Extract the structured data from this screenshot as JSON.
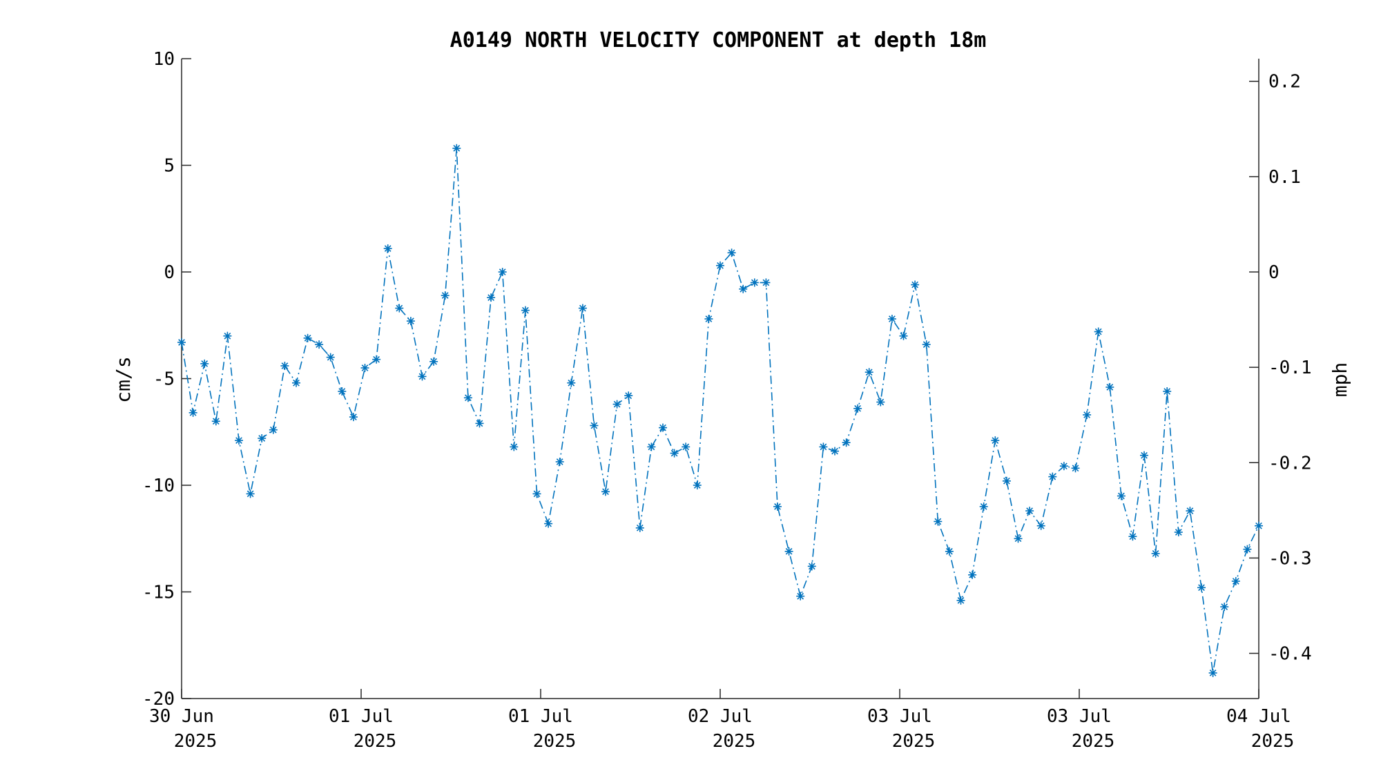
{
  "chart_data": {
    "type": "line",
    "title": "A0149 NORTH VELOCITY COMPONENT at depth 18m",
    "ylabel": "cm/s",
    "ylabel_right": "mph",
    "ylim": [
      -20,
      10
    ],
    "yticks": [
      "10",
      "5",
      "0",
      "-5",
      "-10",
      "-15",
      "-20"
    ],
    "ytick_values": [
      10,
      5,
      0,
      -5,
      -10,
      -15,
      -20
    ],
    "y2lim": [
      -0.4474,
      0.2237
    ],
    "y2ticks": [
      "0.2",
      "0.1",
      "0",
      "-0.1",
      "-0.2",
      "-0.3",
      "-0.4"
    ],
    "y2tick_values": [
      0.2,
      0.1,
      0,
      -0.1,
      -0.2,
      -0.3,
      -0.4
    ],
    "xticks": [
      {
        "line1": "30 Jun",
        "line2": "2025"
      },
      {
        "line1": "01 Jul",
        "line2": "2025"
      },
      {
        "line1": "01 Jul",
        "line2": "2025"
      },
      {
        "line1": "02 Jul",
        "line2": "2025"
      },
      {
        "line1": "03 Jul",
        "line2": "2025"
      },
      {
        "line1": "03 Jul",
        "line2": "2025"
      },
      {
        "line1": "04 Jul",
        "line2": "2025"
      }
    ],
    "grid": false,
    "line_style": "dash-dot",
    "marker": "asterisk",
    "color": "#0072BD",
    "series": [
      {
        "values": [
          -3.3,
          -6.6,
          -4.3,
          -7.0,
          -3.0,
          -7.9,
          -10.4,
          -7.8,
          -7.4,
          -4.4,
          -5.2,
          -3.1,
          -3.4,
          -4.0,
          -5.6,
          -6.8,
          -4.5,
          -4.1,
          1.1,
          -1.7,
          -2.3,
          -4.9,
          -4.2,
          -1.1,
          5.8,
          -5.9,
          -7.1,
          -1.2,
          0.0,
          -8.2,
          -1.8,
          -10.4,
          -11.8,
          -8.9,
          -5.2,
          -1.7,
          -7.2,
          -10.3,
          -6.2,
          -5.8,
          -12.0,
          -8.2,
          -7.3,
          -8.5,
          -8.2,
          -10.0,
          -2.2,
          0.3,
          0.9,
          -0.8,
          -0.5,
          -0.5,
          -11.0,
          -13.1,
          -15.2,
          -13.8,
          -8.2,
          -8.4,
          -8.0,
          -6.4,
          -4.7,
          -6.1,
          -2.2,
          -3.0,
          -0.6,
          -3.4,
          -11.7,
          -13.1,
          -15.4,
          -14.2,
          -11.0,
          -7.9,
          -9.8,
          -12.5,
          -11.2,
          -11.9,
          -9.6,
          -9.1,
          -9.2,
          -6.7,
          -2.8,
          -5.4,
          -10.5,
          -12.4,
          -8.6,
          -13.2,
          -5.6,
          -12.2,
          -11.2,
          -14.8,
          -18.8,
          -15.7,
          -14.5,
          -13.0,
          -11.9
        ]
      }
    ]
  }
}
